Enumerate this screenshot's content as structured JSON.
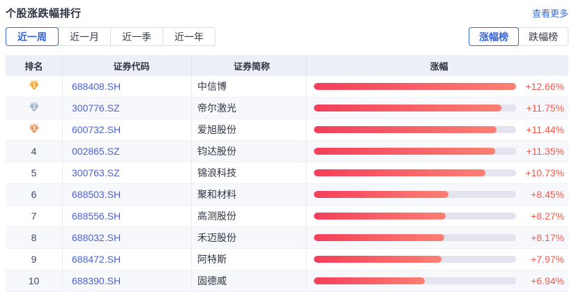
{
  "page": {
    "title": "个股涨跌幅排行",
    "more_link": "查看更多"
  },
  "period_tabs": [
    {
      "label": "近一周",
      "active": true
    },
    {
      "label": "近一月",
      "active": false
    },
    {
      "label": "近一季",
      "active": false
    },
    {
      "label": "近一年",
      "active": false
    }
  ],
  "type_tabs": [
    {
      "label": "涨幅榜",
      "active": true
    },
    {
      "label": "跌幅榜",
      "active": false
    }
  ],
  "table": {
    "headers": [
      "排名",
      "证券代码",
      "证券简称",
      "涨幅"
    ],
    "max_value": 12.66,
    "rows": [
      {
        "rank": "1",
        "medal": "gold",
        "code": "688408.SH",
        "name": "中信博",
        "change": "+12.66%",
        "value": 12.66
      },
      {
        "rank": "2",
        "medal": "silver",
        "code": "300776.SZ",
        "name": "帝尔激光",
        "change": "+11.75%",
        "value": 11.75
      },
      {
        "rank": "3",
        "medal": "bronze",
        "code": "600732.SH",
        "name": "爱旭股份",
        "change": "+11.44%",
        "value": 11.44
      },
      {
        "rank": "4",
        "medal": null,
        "code": "002865.SZ",
        "name": "钧达股份",
        "change": "+11.35%",
        "value": 11.35
      },
      {
        "rank": "5",
        "medal": null,
        "code": "300763.SZ",
        "name": "锦浪科技",
        "change": "+10.73%",
        "value": 10.73
      },
      {
        "rank": "6",
        "medal": null,
        "code": "688503.SH",
        "name": "聚和材料",
        "change": "+8.45%",
        "value": 8.45
      },
      {
        "rank": "7",
        "medal": null,
        "code": "688556.SH",
        "name": "高测股份",
        "change": "+8.27%",
        "value": 8.27
      },
      {
        "rank": "8",
        "medal": null,
        "code": "688032.SH",
        "name": "禾迈股份",
        "change": "+8.17%",
        "value": 8.17
      },
      {
        "rank": "9",
        "medal": null,
        "code": "688472.SH",
        "name": "阿特斯",
        "change": "+7.97%",
        "value": 7.97
      },
      {
        "rank": "10",
        "medal": null,
        "code": "688390.SH",
        "name": "固德威",
        "change": "+6.94%",
        "value": 6.94
      }
    ]
  },
  "medals": {
    "gold": {
      "main": "#f2a63a",
      "light": "#f8cd67"
    },
    "silver": {
      "main": "#9fb0c9",
      "light": "#c9d4e3"
    },
    "bronze": {
      "main": "#eb9257",
      "light": "#f6c08e"
    }
  },
  "colors": {
    "accent_blue": "#3565d8",
    "rise_red": "#f6584a",
    "bar_gradient_start": "#f43f5a",
    "bar_gradient_end": "#fb8074",
    "bar_track": "#e3e4ef",
    "header_bg": "#edeff6"
  }
}
